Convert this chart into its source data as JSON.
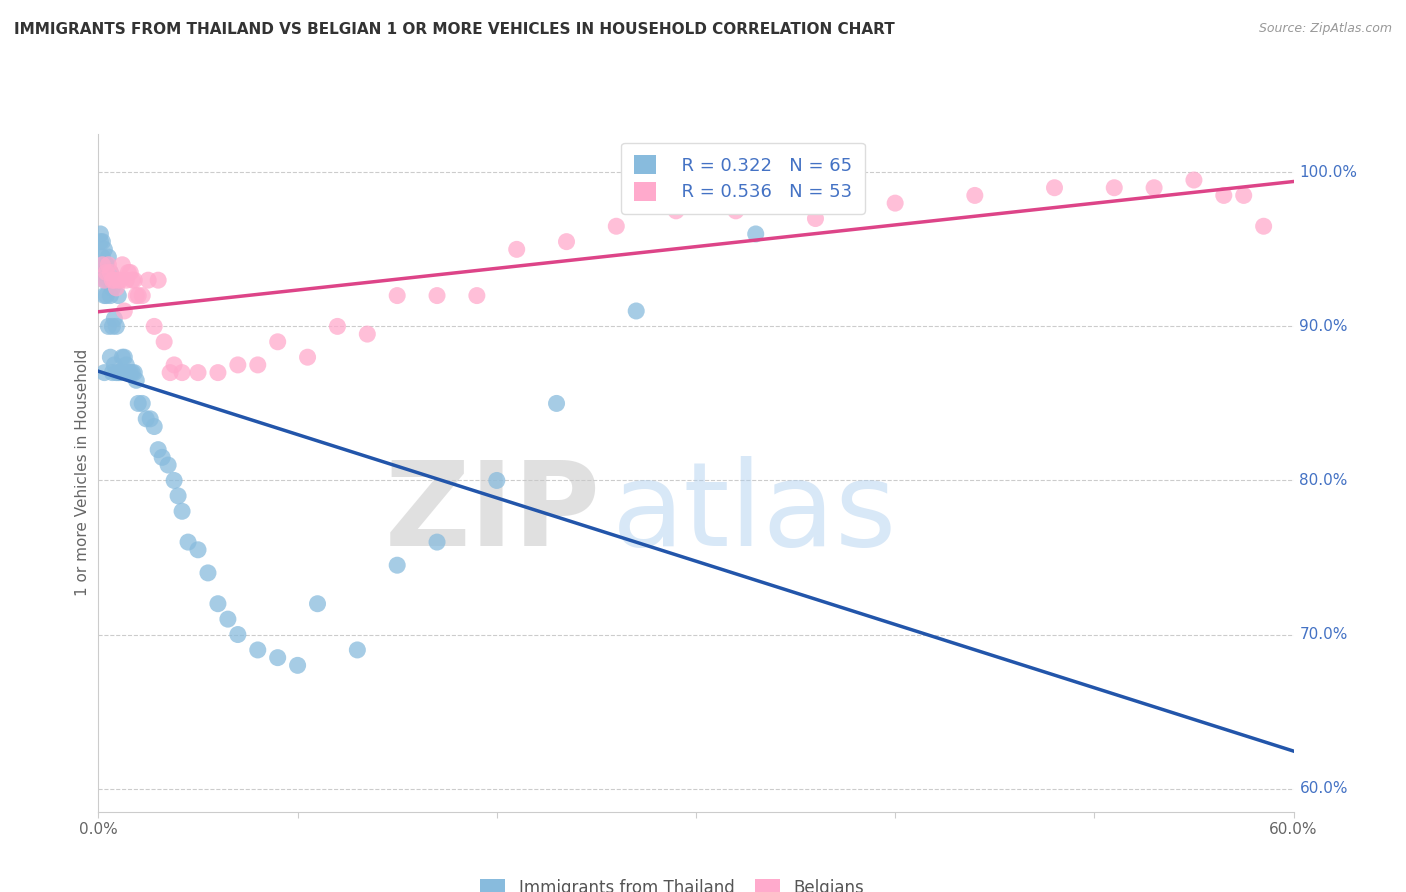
{
  "title": "IMMIGRANTS FROM THAILAND VS BELGIAN 1 OR MORE VEHICLES IN HOUSEHOLD CORRELATION CHART",
  "source": "Source: ZipAtlas.com",
  "ylabel": "1 or more Vehicles in Household",
  "xlim": [
    0.0,
    0.6
  ],
  "ylim": [
    0.585,
    1.025
  ],
  "xtick_positions": [
    0.0,
    0.1,
    0.2,
    0.3,
    0.4,
    0.5,
    0.6
  ],
  "xtick_labels": [
    "0.0%",
    "",
    "",
    "",
    "",
    "",
    "60.0%"
  ],
  "ytick_right_values": [
    1.0,
    0.9,
    0.8,
    0.7,
    0.6
  ],
  "ytick_right_labels": [
    "100.0%",
    "90.0%",
    "80.0%",
    "70.0%",
    "60.0%"
  ],
  "blue_color": "#88bbdd",
  "pink_color": "#ffaacc",
  "blue_line_color": "#2255aa",
  "pink_line_color": "#dd4488",
  "legend_label_blue": "Immigrants from Thailand",
  "legend_label_pink": "Belgians",
  "legend_R_blue": "R = 0.322",
  "legend_N_blue": "N = 65",
  "legend_R_pink": "R = 0.536",
  "legend_N_pink": "N = 53",
  "blue_scatter_x": [
    0.001,
    0.001,
    0.001,
    0.002,
    0.002,
    0.002,
    0.003,
    0.003,
    0.003,
    0.003,
    0.004,
    0.004,
    0.004,
    0.005,
    0.005,
    0.005,
    0.006,
    0.006,
    0.006,
    0.007,
    0.007,
    0.007,
    0.008,
    0.008,
    0.009,
    0.009,
    0.01,
    0.01,
    0.011,
    0.012,
    0.013,
    0.014,
    0.015,
    0.016,
    0.017,
    0.018,
    0.019,
    0.02,
    0.022,
    0.024,
    0.026,
    0.028,
    0.03,
    0.032,
    0.035,
    0.038,
    0.04,
    0.042,
    0.045,
    0.05,
    0.055,
    0.06,
    0.065,
    0.07,
    0.08,
    0.09,
    0.1,
    0.11,
    0.13,
    0.15,
    0.17,
    0.2,
    0.23,
    0.27,
    0.33
  ],
  "blue_scatter_y": [
    0.96,
    0.955,
    0.94,
    0.955,
    0.945,
    0.935,
    0.95,
    0.93,
    0.92,
    0.87,
    0.94,
    0.93,
    0.92,
    0.945,
    0.93,
    0.9,
    0.935,
    0.92,
    0.88,
    0.925,
    0.9,
    0.87,
    0.905,
    0.875,
    0.9,
    0.87,
    0.92,
    0.87,
    0.87,
    0.88,
    0.88,
    0.875,
    0.87,
    0.87,
    0.87,
    0.87,
    0.865,
    0.85,
    0.85,
    0.84,
    0.84,
    0.835,
    0.82,
    0.815,
    0.81,
    0.8,
    0.79,
    0.78,
    0.76,
    0.755,
    0.74,
    0.72,
    0.71,
    0.7,
    0.69,
    0.685,
    0.68,
    0.72,
    0.69,
    0.745,
    0.76,
    0.8,
    0.85,
    0.91,
    0.96
  ],
  "pink_scatter_x": [
    0.002,
    0.003,
    0.004,
    0.005,
    0.006,
    0.007,
    0.008,
    0.009,
    0.01,
    0.011,
    0.012,
    0.013,
    0.014,
    0.015,
    0.016,
    0.017,
    0.018,
    0.019,
    0.02,
    0.022,
    0.025,
    0.028,
    0.03,
    0.033,
    0.036,
    0.038,
    0.042,
    0.05,
    0.06,
    0.07,
    0.08,
    0.09,
    0.105,
    0.12,
    0.135,
    0.15,
    0.17,
    0.19,
    0.21,
    0.235,
    0.26,
    0.29,
    0.32,
    0.36,
    0.4,
    0.44,
    0.48,
    0.51,
    0.53,
    0.55,
    0.565,
    0.575,
    0.585
  ],
  "pink_scatter_y": [
    0.94,
    0.93,
    0.935,
    0.94,
    0.935,
    0.93,
    0.93,
    0.925,
    0.93,
    0.93,
    0.94,
    0.91,
    0.93,
    0.935,
    0.935,
    0.93,
    0.93,
    0.92,
    0.92,
    0.92,
    0.93,
    0.9,
    0.93,
    0.89,
    0.87,
    0.875,
    0.87,
    0.87,
    0.87,
    0.875,
    0.875,
    0.89,
    0.88,
    0.9,
    0.895,
    0.92,
    0.92,
    0.92,
    0.95,
    0.955,
    0.965,
    0.975,
    0.975,
    0.97,
    0.98,
    0.985,
    0.99,
    0.99,
    0.99,
    0.995,
    0.985,
    0.985,
    0.965
  ]
}
